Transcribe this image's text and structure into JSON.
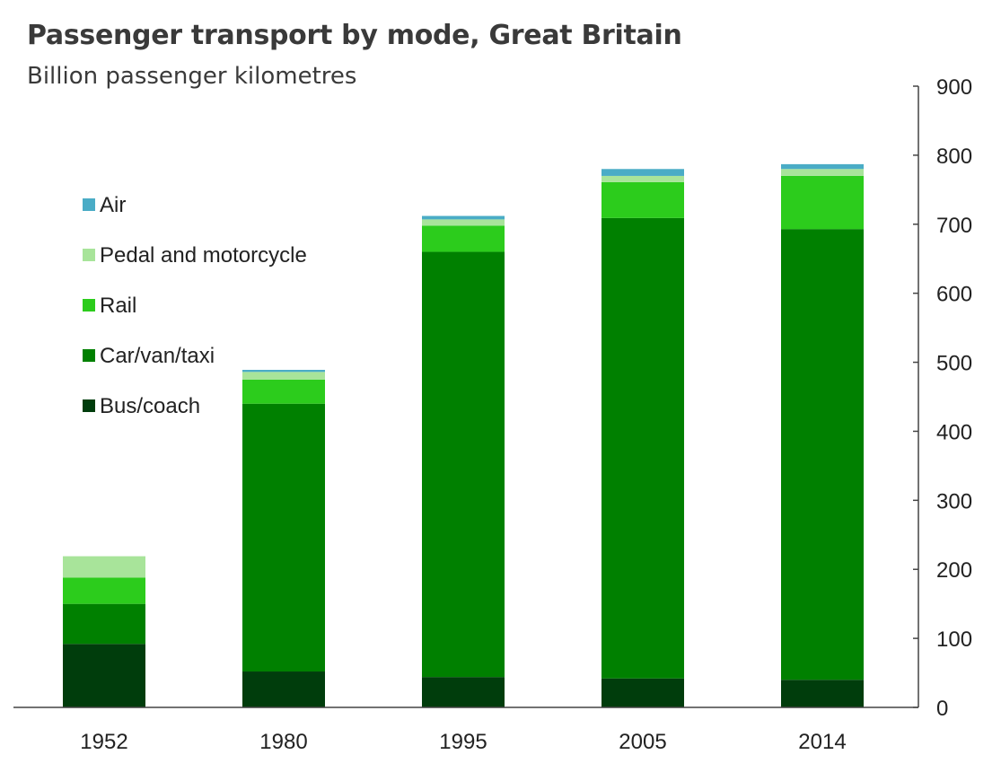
{
  "chart_data": {
    "type": "bar",
    "stacked": true,
    "title": "Passenger transport by mode, Great Britain",
    "subtitle": "Billion passenger kilometres",
    "categories": [
      "1952",
      "1980",
      "1995",
      "2005",
      "2014"
    ],
    "series": [
      {
        "name": "Bus/coach",
        "color": "#003d0c",
        "values": [
          92,
          52,
          44,
          42,
          40
        ]
      },
      {
        "name": "Car/van/taxi",
        "color": "#008000",
        "values": [
          58,
          388,
          616,
          667,
          653
        ]
      },
      {
        "name": "Rail",
        "color": "#2ccc1c",
        "values": [
          38,
          35,
          38,
          52,
          77
        ]
      },
      {
        "name": "Pedal and motorcycle",
        "color": "#a8e49a",
        "values": [
          31,
          11,
          9,
          9,
          10
        ]
      },
      {
        "name": "Air",
        "color": "#4aacc6",
        "values": [
          0,
          3,
          5,
          10,
          7
        ]
      }
    ],
    "legend_order": [
      "Air",
      "Pedal and motorcycle",
      "Rail",
      "Car/van/taxi",
      "Bus/coach"
    ],
    "yaxis": {
      "position": "right",
      "ticks": [
        "0",
        "100",
        "200",
        "300",
        "400",
        "500",
        "600",
        "700",
        "800",
        "900"
      ]
    },
    "ylim": [
      0,
      900
    ],
    "xlabel": "",
    "ylabel": "",
    "grid": false,
    "legend_position": "top-left"
  }
}
